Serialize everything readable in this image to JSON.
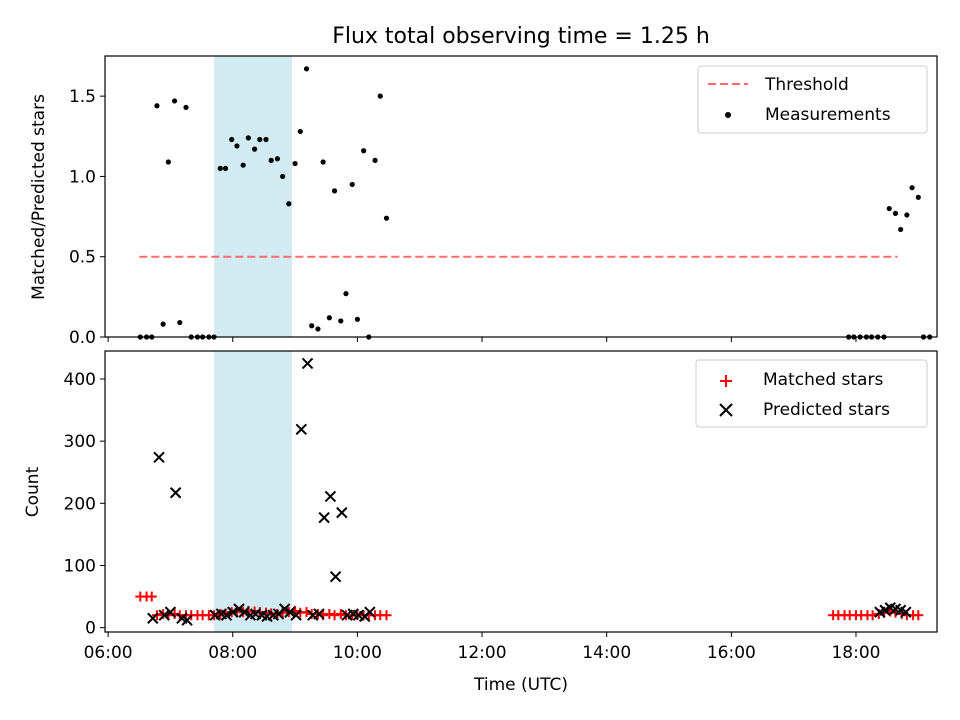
{
  "figure": {
    "title": "Flux total observing time = 1.25 h"
  },
  "chart_data": [
    {
      "type": "scatter",
      "ylabel": "Matched/Predicted stars",
      "xlabel": "",
      "x_unit": "hours UTC",
      "xlim": [
        5.95,
        19.3
      ],
      "ylim": [
        0,
        1.75
      ],
      "yticks": [
        0.0,
        0.5,
        1.0,
        1.5
      ],
      "ytick_labels": [
        "0.0",
        "0.5",
        "1.0",
        "1.5"
      ],
      "xticks": [
        6,
        8,
        10,
        12,
        14,
        16,
        18
      ],
      "xtick_labels": [],
      "grid": false,
      "legend": "upper right",
      "shaded_region": {
        "x_start": "07:42",
        "x_end": "08:57",
        "color": "#add8e6"
      },
      "threshold": {
        "name": "Threshold",
        "value": 0.5,
        "x_start": "06:30",
        "x_end": "18:40",
        "color": "#ff6b6b",
        "style": "dashed"
      },
      "series": [
        {
          "name": "Measurements",
          "color": "#000000",
          "marker": "dot",
          "points": [
            [
              "06:31",
              0.0
            ],
            [
              "06:37",
              0.0
            ],
            [
              "06:42",
              0.0
            ],
            [
              "06:47",
              1.44
            ],
            [
              "06:53",
              0.08
            ],
            [
              "06:58",
              1.09
            ],
            [
              "07:04",
              1.47
            ],
            [
              "07:09",
              0.09
            ],
            [
              "07:15",
              1.43
            ],
            [
              "07:20",
              0.0
            ],
            [
              "07:26",
              0.0
            ],
            [
              "07:31",
              0.0
            ],
            [
              "07:37",
              0.0
            ],
            [
              "07:42",
              0.0
            ],
            [
              "07:48",
              1.05
            ],
            [
              "07:53",
              1.05
            ],
            [
              "07:59",
              1.23
            ],
            [
              "08:04",
              1.19
            ],
            [
              "08:10",
              1.07
            ],
            [
              "08:15",
              1.24
            ],
            [
              "08:21",
              1.17
            ],
            [
              "08:26",
              1.23
            ],
            [
              "08:32",
              1.23
            ],
            [
              "08:37",
              1.1
            ],
            [
              "08:43",
              1.11
            ],
            [
              "08:48",
              1.0
            ],
            [
              "08:54",
              0.83
            ],
            [
              "09:00",
              1.08
            ],
            [
              "09:05",
              1.28
            ],
            [
              "09:11",
              1.67
            ],
            [
              "09:16",
              0.07
            ],
            [
              "09:22",
              0.05
            ],
            [
              "09:27",
              1.09
            ],
            [
              "09:33",
              0.12
            ],
            [
              "09:38",
              0.91
            ],
            [
              "09:44",
              0.1
            ],
            [
              "09:49",
              0.27
            ],
            [
              "09:55",
              0.95
            ],
            [
              "10:00",
              0.11
            ],
            [
              "10:06",
              1.16
            ],
            [
              "10:11",
              0.0
            ],
            [
              "10:17",
              1.1
            ],
            [
              "10:22",
              1.5
            ],
            [
              "10:28",
              0.74
            ],
            [
              "17:53",
              0.0
            ],
            [
              "17:58",
              0.0
            ],
            [
              "18:04",
              0.0
            ],
            [
              "18:10",
              0.0
            ],
            [
              "18:15",
              0.0
            ],
            [
              "18:21",
              0.0
            ],
            [
              "18:27",
              0.0
            ],
            [
              "18:32",
              0.8
            ],
            [
              "18:38",
              0.77
            ],
            [
              "18:43",
              0.67
            ],
            [
              "18:49",
              0.76
            ],
            [
              "18:54",
              0.93
            ],
            [
              "19:00",
              0.87
            ],
            [
              "19:05",
              0.0
            ],
            [
              "19:11",
              0.0
            ]
          ]
        }
      ]
    },
    {
      "type": "scatter",
      "xlabel": "Time (UTC)",
      "ylabel": "Count",
      "x_unit": "hours UTC",
      "xlim": [
        5.95,
        19.3
      ],
      "ylim": [
        -7,
        445
      ],
      "yticks": [
        0,
        100,
        200,
        300,
        400
      ],
      "ytick_labels": [
        "0",
        "100",
        "200",
        "300",
        "400"
      ],
      "xticks": [
        6,
        8,
        10,
        12,
        14,
        16,
        18
      ],
      "xtick_labels": [
        "06:00",
        "08:00",
        "10:00",
        "12:00",
        "14:00",
        "16:00",
        "18:00"
      ],
      "grid": false,
      "legend": "upper right",
      "shaded_region": {
        "x_start": "07:42",
        "x_end": "08:57",
        "color": "#add8e6"
      },
      "series": [
        {
          "name": "Matched stars",
          "color": "#ff0000",
          "marker": "plus",
          "points": [
            [
              "06:31",
              50
            ],
            [
              "06:37",
              50
            ],
            [
              "06:42",
              50
            ],
            [
              "06:47",
              20
            ],
            [
              "06:53",
              22
            ],
            [
              "06:58",
              20
            ],
            [
              "07:04",
              22
            ],
            [
              "07:09",
              20
            ],
            [
              "07:15",
              20
            ],
            [
              "07:20",
              20
            ],
            [
              "07:26",
              20
            ],
            [
              "07:31",
              20
            ],
            [
              "07:37",
              20
            ],
            [
              "07:42",
              20
            ],
            [
              "07:48",
              22
            ],
            [
              "07:53",
              22
            ],
            [
              "07:59",
              25
            ],
            [
              "08:04",
              27
            ],
            [
              "08:10",
              25
            ],
            [
              "08:15",
              27
            ],
            [
              "08:21",
              26
            ],
            [
              "08:26",
              25
            ],
            [
              "08:32",
              24
            ],
            [
              "08:37",
              23
            ],
            [
              "08:43",
              22
            ],
            [
              "08:48",
              24
            ],
            [
              "08:54",
              25
            ],
            [
              "09:00",
              27
            ],
            [
              "09:05",
              24
            ],
            [
              "09:11",
              25
            ],
            [
              "09:16",
              22
            ],
            [
              "09:22",
              22
            ],
            [
              "09:27",
              20
            ],
            [
              "09:33",
              22
            ],
            [
              "09:38",
              20
            ],
            [
              "09:44",
              22
            ],
            [
              "09:49",
              20
            ],
            [
              "09:55",
              20
            ],
            [
              "10:00",
              20
            ],
            [
              "10:06",
              20
            ],
            [
              "10:11",
              20
            ],
            [
              "10:17",
              20
            ],
            [
              "10:22",
              20
            ],
            [
              "10:28",
              20
            ],
            [
              "17:38",
              20
            ],
            [
              "17:43",
              20
            ],
            [
              "17:49",
              20
            ],
            [
              "17:54",
              20
            ],
            [
              "18:00",
              20
            ],
            [
              "18:05",
              20
            ],
            [
              "18:11",
              20
            ],
            [
              "18:16",
              20
            ],
            [
              "18:22",
              22
            ],
            [
              "18:27",
              24
            ],
            [
              "18:33",
              26
            ],
            [
              "18:38",
              24
            ],
            [
              "18:44",
              22
            ],
            [
              "18:49",
              20
            ],
            [
              "18:55",
              20
            ],
            [
              "19:00",
              20
            ]
          ]
        },
        {
          "name": "Predicted stars",
          "color": "#000000",
          "marker": "x",
          "points": [
            [
              "06:43",
              15
            ],
            [
              "06:49",
              274
            ],
            [
              "06:54",
              20
            ],
            [
              "07:00",
              25
            ],
            [
              "07:05",
              217
            ],
            [
              "07:11",
              15
            ],
            [
              "07:16",
              12
            ],
            [
              "07:43",
              20
            ],
            [
              "07:49",
              22
            ],
            [
              "07:54",
              20
            ],
            [
              "08:00",
              25
            ],
            [
              "08:06",
              30
            ],
            [
              "08:11",
              25
            ],
            [
              "08:17",
              20
            ],
            [
              "08:22",
              22
            ],
            [
              "08:28",
              20
            ],
            [
              "08:33",
              18
            ],
            [
              "08:39",
              20
            ],
            [
              "08:44",
              22
            ],
            [
              "08:50",
              30
            ],
            [
              "08:55",
              25
            ],
            [
              "09:01",
              20
            ],
            [
              "09:06",
              319
            ],
            [
              "09:12",
              425
            ],
            [
              "09:17",
              20
            ],
            [
              "09:23",
              22
            ],
            [
              "09:28",
              177
            ],
            [
              "09:34",
              211
            ],
            [
              "09:39",
              82
            ],
            [
              "09:45",
              185
            ],
            [
              "09:50",
              20
            ],
            [
              "09:56",
              22
            ],
            [
              "10:01",
              20
            ],
            [
              "10:07",
              18
            ],
            [
              "10:12",
              25
            ],
            [
              "18:23",
              25
            ],
            [
              "18:28",
              28
            ],
            [
              "18:33",
              32
            ],
            [
              "18:38",
              30
            ],
            [
              "18:43",
              28
            ],
            [
              "18:48",
              25
            ]
          ]
        }
      ]
    }
  ]
}
